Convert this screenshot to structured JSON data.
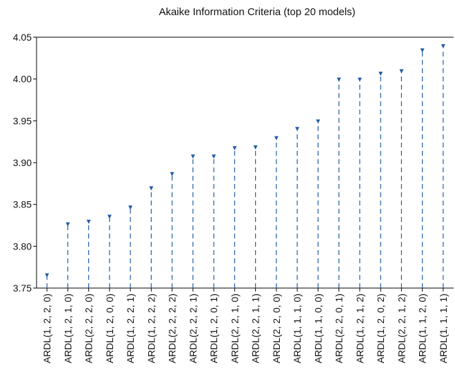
{
  "chart_data": {
    "type": "scatter",
    "title": "Akaike Information Criteria (top 20 models)",
    "xlabel": "",
    "ylabel": "",
    "ylim": [
      3.75,
      4.05
    ],
    "yticks": [
      "3.75",
      "3.80",
      "3.85",
      "3.90",
      "3.95",
      "4.00",
      "4.05"
    ],
    "categories": [
      "ARDL(1, 2, 2, 0)",
      "ARDL(1, 2, 1, 0)",
      "ARDL(2, 2, 2, 0)",
      "ARDL(1, 2, 0, 0)",
      "ARDL(1, 2, 2, 1)",
      "ARDL(1, 2, 2, 2)",
      "ARDL(2, 2, 2, 2)",
      "ARDL(2, 2, 2, 1)",
      "ARDL(1, 2, 0, 1)",
      "ARDL(2, 2, 1, 0)",
      "ARDL(2, 2, 1, 1)",
      "ARDL(2, 2, 0, 0)",
      "ARDL(1, 1, 1, 0)",
      "ARDL(1, 1, 0, 0)",
      "ARDL(2, 2, 0, 1)",
      "ARDL(1, 2, 1, 2)",
      "ARDL(1, 2, 0, 2)",
      "ARDL(2, 2, 1, 2)",
      "ARDL(1, 1, 2, 0)",
      "ARDL(1, 1, 1, 1)"
    ],
    "values": [
      3.766,
      3.827,
      3.83,
      3.836,
      3.847,
      3.87,
      3.887,
      3.908,
      3.908,
      3.918,
      3.919,
      3.93,
      3.941,
      3.95,
      4.0,
      4.0,
      4.007,
      4.01,
      4.035,
      4.04
    ],
    "grid": false,
    "legend": "none",
    "colors": {
      "marker": "#1f5aa6",
      "axis": "#000000",
      "text": "#111111"
    }
  }
}
